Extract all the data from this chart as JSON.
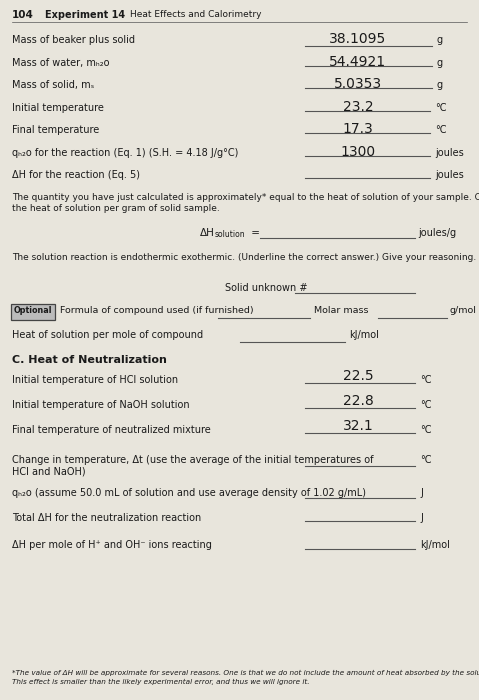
{
  "page_number": "104",
  "header_experiment": "Experiment 14",
  "header_subtitle": "Heat Effects and Calorimetry",
  "bg_color": "#e8e5dc",
  "text_color": "#1a1a1a",
  "handwritten_color": "#1a1a1a",
  "line_color": "#555555",
  "rows": [
    {
      "label": "Mass of beaker plus solid",
      "value": "38.1095",
      "unit": "g"
    },
    {
      "label": "Mass of water, mₕ₂o",
      "value": "54.4921",
      "unit": "g"
    },
    {
      "label": "Mass of solid, mₛ",
      "value": "5.0353",
      "unit": "g"
    },
    {
      "label": "Initial temperature",
      "value": "23.2",
      "unit": "°C"
    },
    {
      "label": "Final temperature",
      "value": "17.3",
      "unit": "°C"
    },
    {
      "label": "qₕ₂o for the reaction (Eq. 1) (S.H. = 4.18 J/g°C)",
      "value": "1300",
      "unit": "joules"
    },
    {
      "label": "ΔH for the reaction (Eq. 5)",
      "value": "",
      "unit": "joules"
    }
  ],
  "paragraph1_line1": "The quantity you have just calculated is approximately* equal to the heat of solution of your sample. Calculate",
  "paragraph1_line2": "the heat of solution per gram of solid sample.",
  "delta_H_prefix": "ΔH",
  "delta_H_sub": "solution",
  "delta_H_eq": " =",
  "delta_H_unit": "joules/g",
  "paragraph2": "The solution reaction is endothermic exothermic. (Underline the correct answer.) Give your reasoning.",
  "solid_unknown_label": "Solid unknown #",
  "optional_box": "Optional",
  "formula_label": "Formula of compound used (if furnished)",
  "molar_mass_label": "Molar mass",
  "molar_mass_unit": "g/mol",
  "heat_sol_label": "Heat of solution per mole of compound",
  "heat_sol_unit": "kJ/mol",
  "section_c_title": "C. Heat of Neutralization",
  "section_c_rows": [
    {
      "label": "Initial temperature of HCl solution",
      "value": "22.5",
      "unit": "°C",
      "multiline": false
    },
    {
      "label": "Initial temperature of NaOH solution",
      "value": "22.8",
      "unit": "°C",
      "multiline": false
    },
    {
      "label": "Final temperature of neutralized mixture",
      "value": "32.1",
      "unit": "°C",
      "multiline": false
    },
    {
      "label": "Change in temperature, Δt (use the average of the initial temperatures of\nHCl and NaOH)",
      "value": "",
      "unit": "°C",
      "multiline": true
    },
    {
      "label": "qₕ₂o (assume 50.0 mL of solution and use average density of 1.02 g/mL)",
      "value": "",
      "unit": "J",
      "multiline": false
    },
    {
      "label": "Total ΔH for the neutralization reaction",
      "value": "",
      "unit": "J",
      "multiline": false
    },
    {
      "label": "ΔH per mole of H⁺ and OH⁻ ions reacting",
      "value": "",
      "unit": "kJ/mol",
      "multiline": false
    }
  ],
  "footnote_line1": "*The value of ΔH will be approximate for several reasons. One is that we do not include the amount of heat absorbed by the solute.",
  "footnote_line2": "This effect is smaller than the likely experimental error, and thus we will ignore it."
}
